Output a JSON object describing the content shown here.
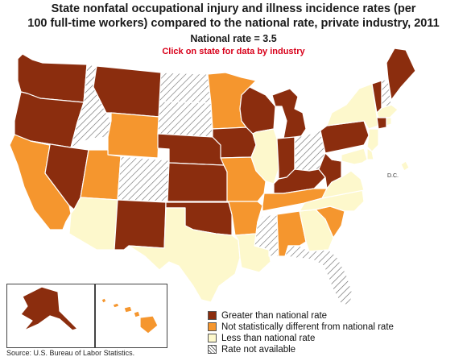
{
  "header": {
    "title_line1": "State nonfatal occupational injury and illness incidence rates (per",
    "title_line2": "100 full-time workers) compared to the national rate, private industry, 2011",
    "national_rate": "National rate = 3.5",
    "click_hint": "Click on state for data by industry"
  },
  "colors": {
    "greater": "#8b2d0e",
    "not_different": "#f5962e",
    "less": "#fdf8cc",
    "not_available": "hatch"
  },
  "legend": {
    "items": [
      {
        "key": "greater",
        "label": "Greater than national rate"
      },
      {
        "key": "not_different",
        "label": "Not statistically different from national rate"
      },
      {
        "key": "less",
        "label": "Less than national rate"
      },
      {
        "key": "not_available",
        "label": "Rate not available"
      }
    ]
  },
  "map": {
    "dc_label": "D.C.",
    "states": [
      {
        "id": "WA",
        "category": "greater"
      },
      {
        "id": "OR",
        "category": "greater"
      },
      {
        "id": "CA",
        "category": "not_different"
      },
      {
        "id": "NV",
        "category": "greater"
      },
      {
        "id": "ID",
        "category": "not_available"
      },
      {
        "id": "MT",
        "category": "greater"
      },
      {
        "id": "WY",
        "category": "not_different"
      },
      {
        "id": "UT",
        "category": "not_different"
      },
      {
        "id": "AZ",
        "category": "less"
      },
      {
        "id": "CO",
        "category": "not_available"
      },
      {
        "id": "NM",
        "category": "greater"
      },
      {
        "id": "ND",
        "category": "not_available"
      },
      {
        "id": "SD",
        "category": "not_available"
      },
      {
        "id": "NE",
        "category": "greater"
      },
      {
        "id": "KS",
        "category": "greater"
      },
      {
        "id": "OK",
        "category": "greater"
      },
      {
        "id": "TX",
        "category": "less"
      },
      {
        "id": "MN",
        "category": "not_different"
      },
      {
        "id": "IA",
        "category": "greater"
      },
      {
        "id": "MO",
        "category": "not_different"
      },
      {
        "id": "AR",
        "category": "not_different"
      },
      {
        "id": "LA",
        "category": "less"
      },
      {
        "id": "WI",
        "category": "greater"
      },
      {
        "id": "IL",
        "category": "less"
      },
      {
        "id": "MS",
        "category": "not_available"
      },
      {
        "id": "MI",
        "category": "greater"
      },
      {
        "id": "IN",
        "category": "greater"
      },
      {
        "id": "OH",
        "category": "not_available"
      },
      {
        "id": "KY",
        "category": "greater"
      },
      {
        "id": "TN",
        "category": "not_different"
      },
      {
        "id": "AL",
        "category": "not_different"
      },
      {
        "id": "GA",
        "category": "less"
      },
      {
        "id": "FL",
        "category": "not_available"
      },
      {
        "id": "SC",
        "category": "not_different"
      },
      {
        "id": "NC",
        "category": "less"
      },
      {
        "id": "VA",
        "category": "less"
      },
      {
        "id": "WV",
        "category": "greater"
      },
      {
        "id": "PA",
        "category": "greater"
      },
      {
        "id": "NY",
        "category": "less"
      },
      {
        "id": "NJ",
        "category": "less"
      },
      {
        "id": "DE",
        "category": "less"
      },
      {
        "id": "MD",
        "category": "less"
      },
      {
        "id": "DC",
        "category": "less"
      },
      {
        "id": "VT",
        "category": "greater"
      },
      {
        "id": "NH",
        "category": "not_available"
      },
      {
        "id": "ME",
        "category": "greater"
      },
      {
        "id": "MA",
        "category": "less"
      },
      {
        "id": "CT",
        "category": "greater"
      },
      {
        "id": "RI",
        "category": "less"
      },
      {
        "id": "AK",
        "category": "greater"
      },
      {
        "id": "HI",
        "category": "not_different"
      }
    ]
  },
  "footer": {
    "source": "Source:  U.S. Bureau of Labor Statistics."
  }
}
